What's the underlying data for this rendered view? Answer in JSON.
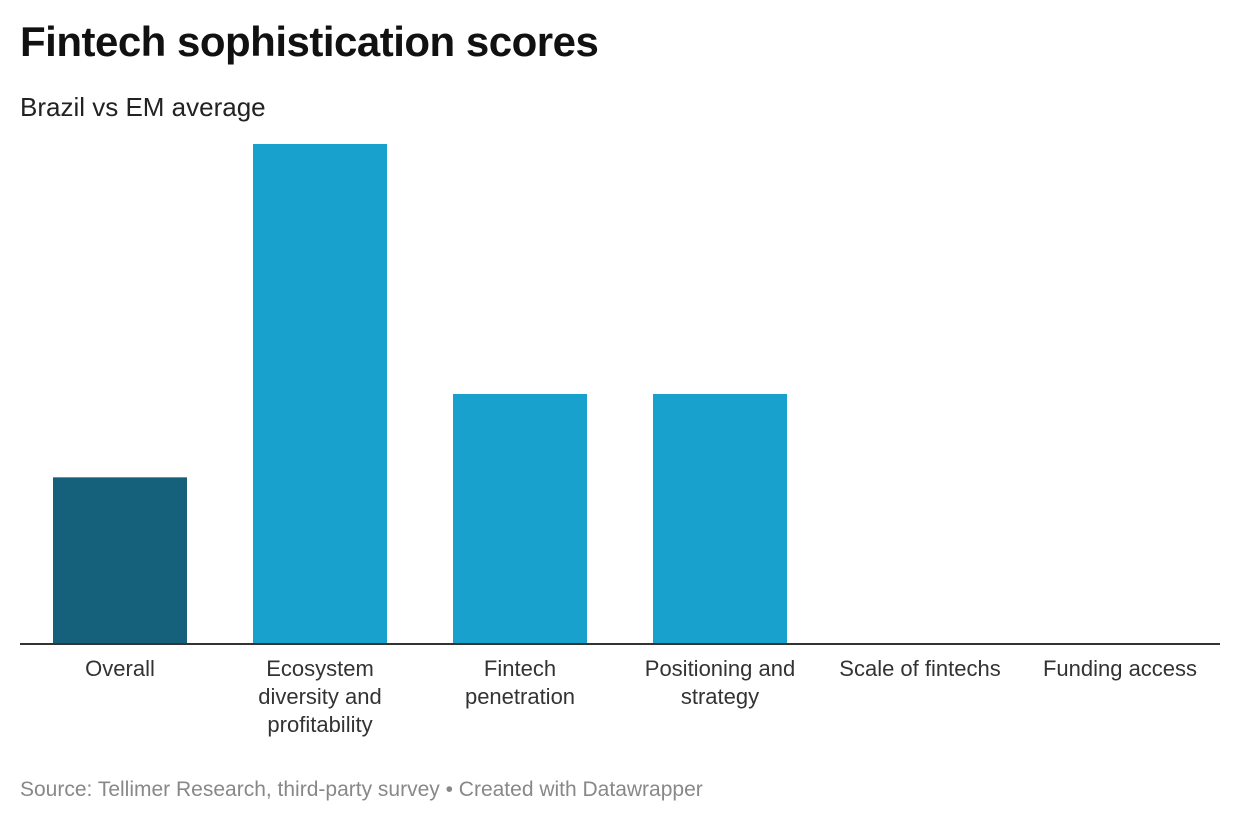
{
  "chart_data": {
    "type": "bar",
    "title": "Fintech sophistication scores",
    "subtitle": "Brazil vs EM average",
    "categories": [
      "Overall",
      "Ecosystem diversity and profitability",
      "Fintech penetration",
      "Positioning and strategy",
      "Scale of fintechs",
      "Funding access"
    ],
    "category_lines": [
      [
        "Overall"
      ],
      [
        "Ecosystem",
        "diversity and",
        "profitability"
      ],
      [
        "Fintech",
        "penetration"
      ],
      [
        "Positioning and",
        "strategy"
      ],
      [
        "Scale of fintechs"
      ],
      [
        "Funding access"
      ]
    ],
    "values": [
      1.0,
      3.0,
      1.5,
      1.5,
      0,
      0
    ],
    "ylim": [
      0,
      3
    ],
    "colors": [
      "#15607a",
      "#18a1cd",
      "#18a1cd",
      "#18a1cd",
      "#18a1cd",
      "#18a1cd"
    ],
    "grid": false,
    "xlabel": "",
    "ylabel": ""
  },
  "footer": {
    "source": "Source: Tellimer Research, third-party survey • Created with Datawrapper"
  }
}
